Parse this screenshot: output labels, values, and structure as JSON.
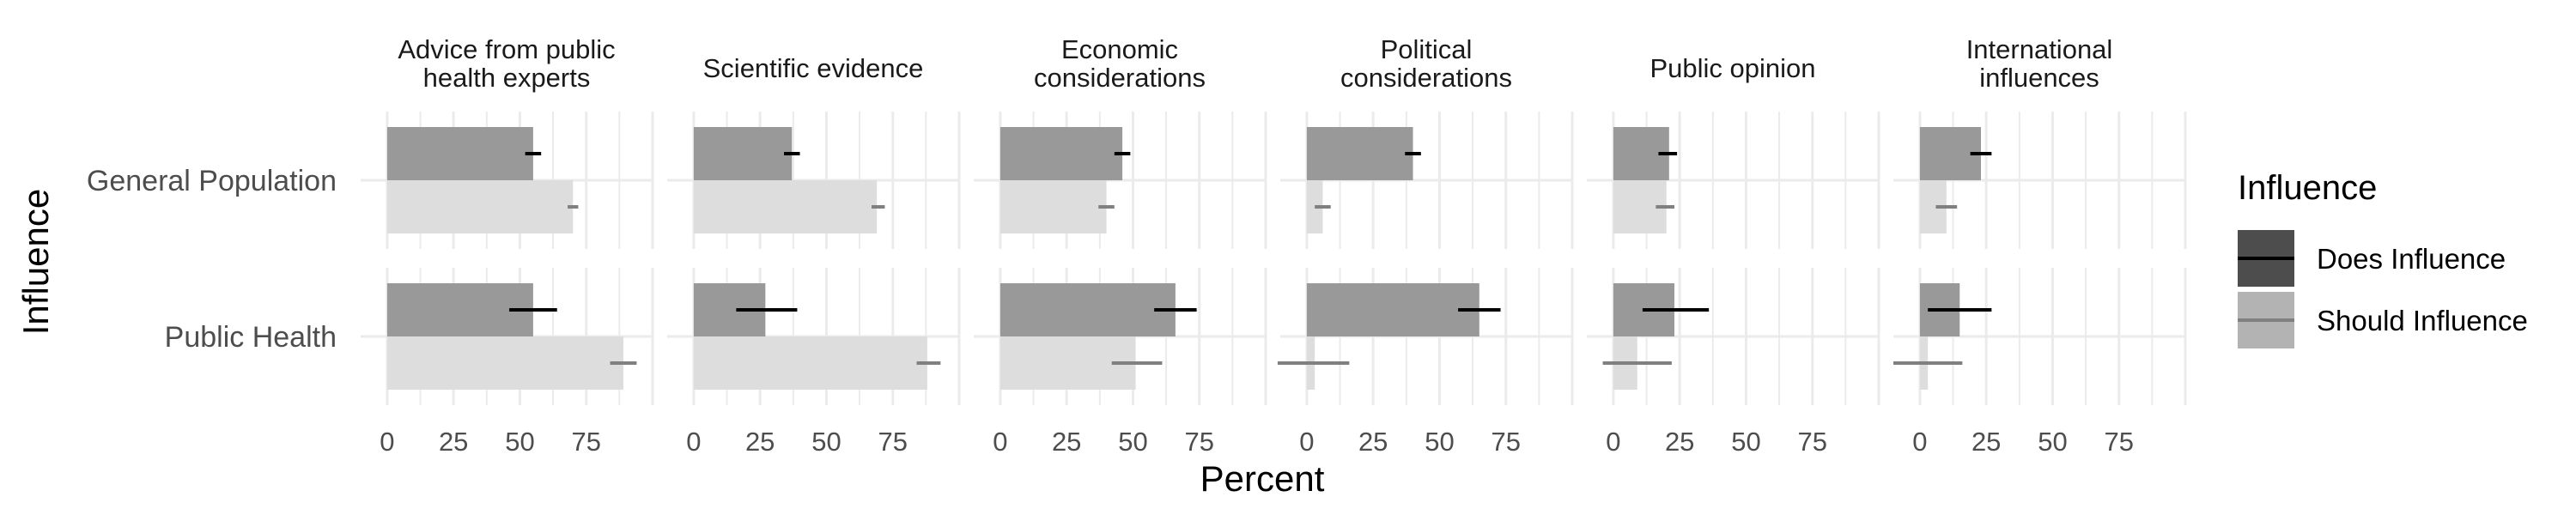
{
  "chart_data": {
    "type": "bar",
    "orientation": "horizontal",
    "xlabel": "Percent",
    "ylabel": "Influence",
    "xlim": [
      -10,
      100
    ],
    "xticks": [
      0,
      25,
      50,
      75
    ],
    "grid": true,
    "legend_position": "right",
    "legend": {
      "title": "Influence",
      "entries": [
        {
          "label": "Does Influence",
          "bar_color": "#4d4d4d",
          "err_color": "#000000"
        },
        {
          "label": "Should Influence",
          "bar_color": "#b3b3b3",
          "err_color": "#808080"
        }
      ]
    },
    "rows": [
      "General Population",
      "Public Health"
    ],
    "panels": [
      {
        "title": [
          "Advice from public",
          "health experts"
        ],
        "groups": [
          {
            "row": "General Population",
            "does": {
              "value": 55,
              "err_low": 52,
              "err_high": 58
            },
            "should": {
              "value": 70,
              "err_low": 68,
              "err_high": 72
            }
          },
          {
            "row": "Public Health",
            "does": {
              "value": 55,
              "err_low": 46,
              "err_high": 64
            },
            "should": {
              "value": 89,
              "err_low": 84,
              "err_high": 94
            }
          }
        ]
      },
      {
        "title": [
          "Scientific evidence"
        ],
        "groups": [
          {
            "row": "General Population",
            "does": {
              "value": 37,
              "err_low": 34,
              "err_high": 40
            },
            "should": {
              "value": 69,
              "err_low": 67,
              "err_high": 72
            }
          },
          {
            "row": "Public Health",
            "does": {
              "value": 27,
              "err_low": 16,
              "err_high": 39
            },
            "should": {
              "value": 88,
              "err_low": 84,
              "err_high": 93
            }
          }
        ]
      },
      {
        "title": [
          "Economic",
          "considerations"
        ],
        "groups": [
          {
            "row": "General Population",
            "does": {
              "value": 46,
              "err_low": 43,
              "err_high": 49
            },
            "should": {
              "value": 40,
              "err_low": 37,
              "err_high": 43
            }
          },
          {
            "row": "Public Health",
            "does": {
              "value": 66,
              "err_low": 58,
              "err_high": 74
            },
            "should": {
              "value": 51,
              "err_low": 42,
              "err_high": 61
            }
          }
        ]
      },
      {
        "title": [
          "Political",
          "considerations"
        ],
        "groups": [
          {
            "row": "General Population",
            "does": {
              "value": 40,
              "err_low": 37,
              "err_high": 43
            },
            "should": {
              "value": 6,
              "err_low": 3,
              "err_high": 9
            }
          },
          {
            "row": "Public Health",
            "does": {
              "value": 65,
              "err_low": 57,
              "err_high": 73
            },
            "should": {
              "value": 3,
              "err_low": -11,
              "err_high": 16
            }
          }
        ]
      },
      {
        "title": [
          "Public opinion"
        ],
        "groups": [
          {
            "row": "General Population",
            "does": {
              "value": 21,
              "err_low": 17,
              "err_high": 24
            },
            "should": {
              "value": 20,
              "err_low": 16,
              "err_high": 23
            }
          },
          {
            "row": "Public Health",
            "does": {
              "value": 23,
              "err_low": 11,
              "err_high": 36
            },
            "should": {
              "value": 9,
              "err_low": -4,
              "err_high": 22
            }
          }
        ]
      },
      {
        "title": [
          "International",
          "influences"
        ],
        "groups": [
          {
            "row": "General Population",
            "does": {
              "value": 23,
              "err_low": 19,
              "err_high": 27
            },
            "should": {
              "value": 10,
              "err_low": 6,
              "err_high": 14
            }
          },
          {
            "row": "Public Health",
            "does": {
              "value": 15,
              "err_low": 3,
              "err_high": 27
            },
            "should": {
              "value": 3,
              "err_low": -10,
              "err_high": 16
            }
          }
        ]
      }
    ]
  }
}
